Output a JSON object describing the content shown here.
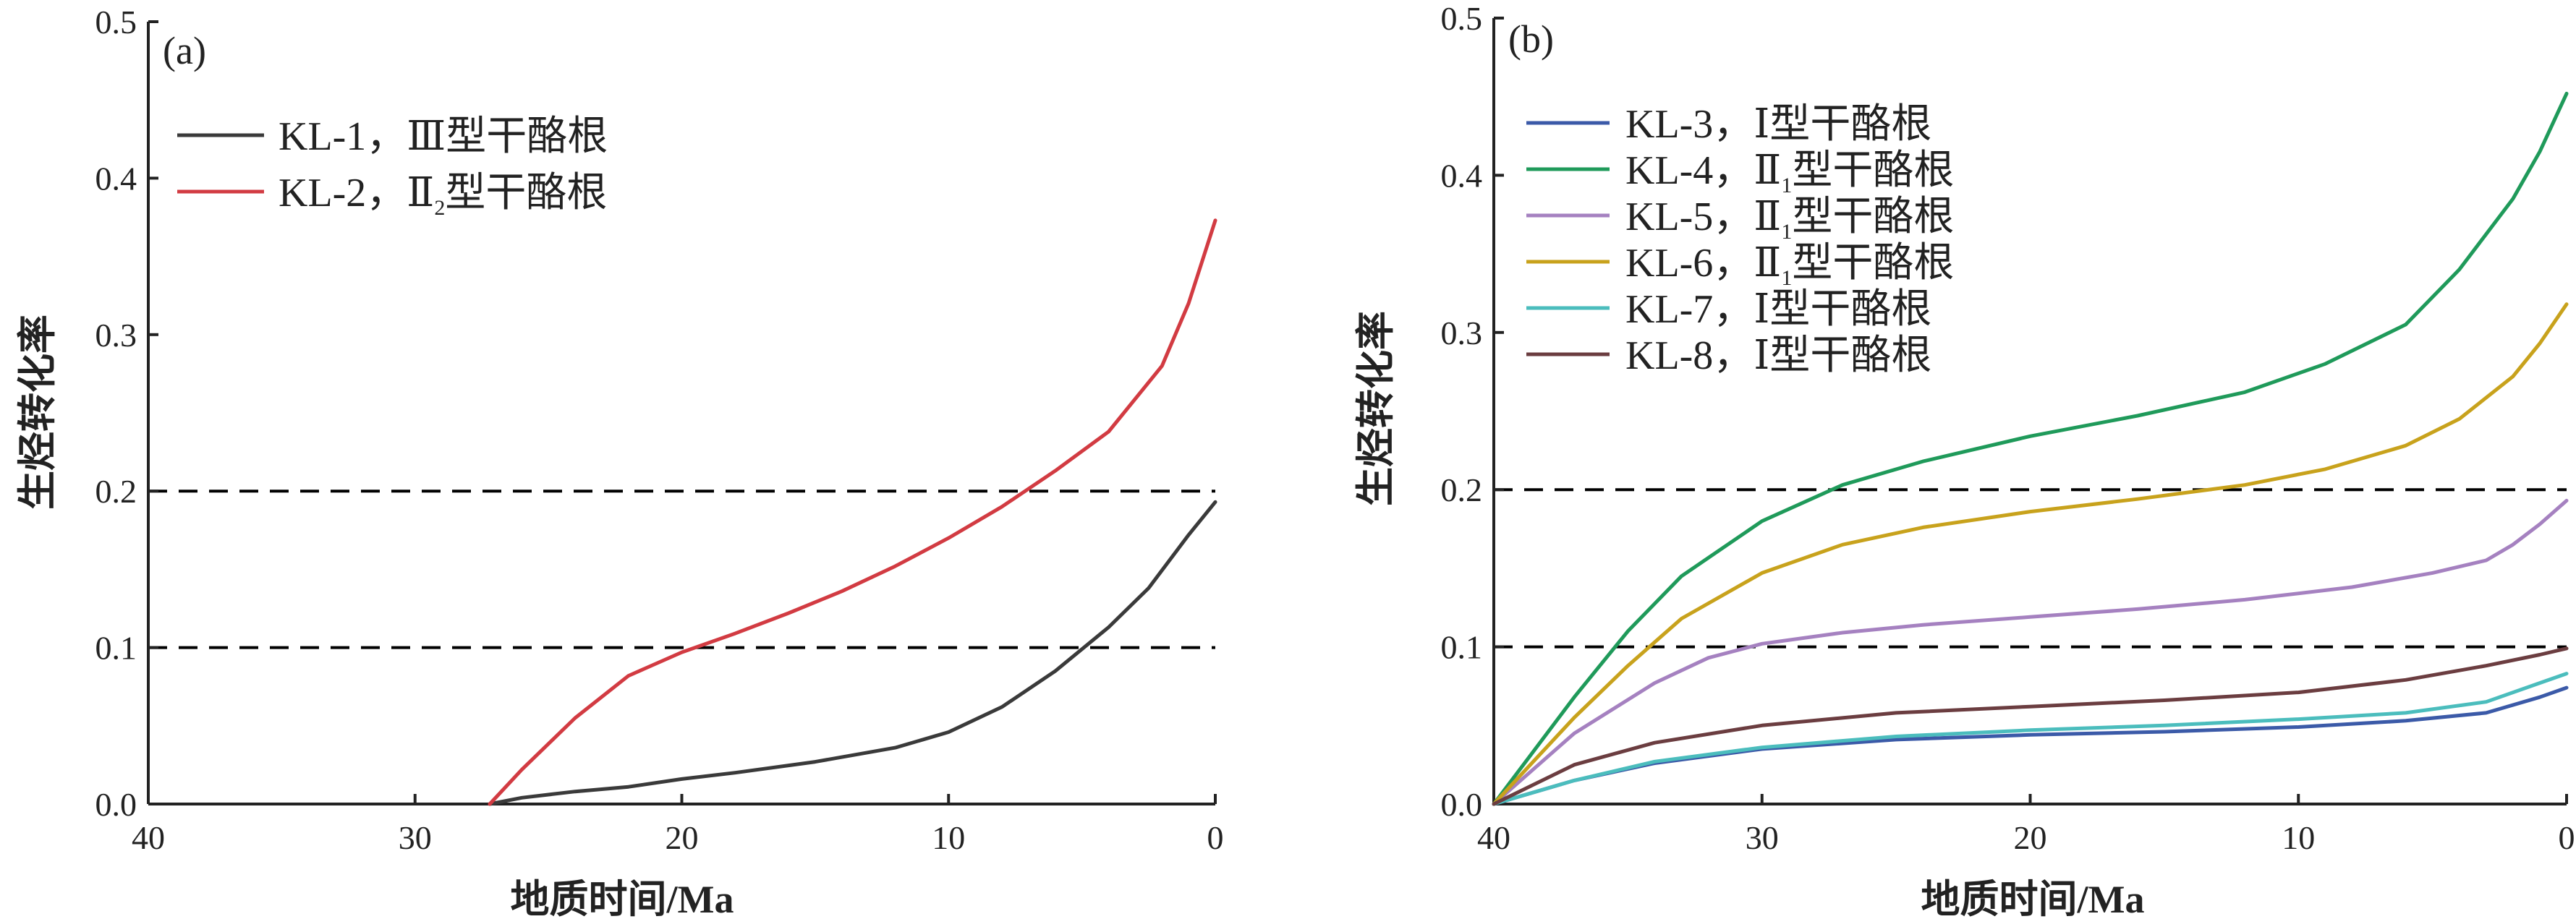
{
  "figure": {
    "panels": [
      {
        "id": "a",
        "panel_label": "(a)",
        "legend_placement": "top-left"
      },
      {
        "id": "b",
        "panel_label": "(b)",
        "legend_placement": "upper-left"
      }
    ]
  },
  "chart_data": [
    {
      "type": "line",
      "panel": "(a)",
      "xlabel": "地质时间/Ma",
      "ylabel": "生烃转化率",
      "xlim": [
        40,
        0
      ],
      "ylim": [
        0,
        0.5
      ],
      "xticks": [
        40,
        30,
        20,
        10,
        0
      ],
      "xtick_labels": [
        "40",
        "30",
        "20",
        "10",
        "0"
      ],
      "yticks": [
        0,
        0.1,
        0.2,
        0.3,
        0.4,
        0.5
      ],
      "ytick_labels": [
        "0.0",
        "0.1",
        "0.2",
        "0.3",
        "0.4",
        "0.5"
      ],
      "reference_lines": [
        {
          "axis": "y",
          "value": 0.1,
          "style": "dashed",
          "color": "#000000"
        },
        {
          "axis": "y",
          "value": 0.2,
          "style": "dashed",
          "color": "#000000"
        }
      ],
      "series": [
        {
          "name": "KL-1，Ⅲ型干酪根",
          "label_main": "KL-1，Ⅲ型干酪根",
          "color": "#3a3a3a",
          "x": [
            27.2,
            26,
            25,
            24,
            22,
            20,
            18,
            15,
            12,
            10,
            8,
            6,
            4,
            2.5,
            1,
            0
          ],
          "y": [
            0.0,
            0.004,
            0.006,
            0.008,
            0.011,
            0.016,
            0.02,
            0.027,
            0.036,
            0.046,
            0.062,
            0.085,
            0.113,
            0.138,
            0.172,
            0.193
          ]
        },
        {
          "name": "KL-2，Ⅱ2型干酪根",
          "label_main": "KL-2，Ⅱ",
          "label_sub": "2",
          "label_tail": "型干酪根",
          "color": "#d23b42",
          "x": [
            27.2,
            26,
            24,
            22,
            20,
            18,
            16,
            14,
            12,
            10,
            8,
            6,
            4,
            2,
            1,
            0
          ],
          "y": [
            0.0,
            0.022,
            0.055,
            0.082,
            0.097,
            0.109,
            0.122,
            0.136,
            0.152,
            0.17,
            0.19,
            0.213,
            0.238,
            0.28,
            0.32,
            0.373
          ]
        }
      ]
    },
    {
      "type": "line",
      "panel": "(b)",
      "xlabel": "地质时间/Ma",
      "ylabel": "生烃转化率",
      "xlim": [
        40,
        0
      ],
      "ylim": [
        0,
        0.5
      ],
      "xticks": [
        40,
        30,
        20,
        10,
        0
      ],
      "xtick_labels": [
        "40",
        "30",
        "20",
        "10",
        "0"
      ],
      "yticks": [
        0,
        0.1,
        0.2,
        0.3,
        0.4,
        0.5
      ],
      "ytick_labels": [
        "0.0",
        "0.1",
        "0.2",
        "0.3",
        "0.4",
        "0.5"
      ],
      "reference_lines": [
        {
          "axis": "y",
          "value": 0.1,
          "style": "dashed",
          "color": "#000000"
        },
        {
          "axis": "y",
          "value": 0.2,
          "style": "dashed",
          "color": "#000000"
        }
      ],
      "series": [
        {
          "name": "KL-3，Ⅰ型干酪根",
          "label_main": "KL-3，Ⅰ型干酪根",
          "color": "#3b5aa8",
          "x": [
            40,
            37,
            34,
            30,
            25,
            20,
            15,
            10,
            6,
            3,
            1,
            0
          ],
          "y": [
            0.0,
            0.015,
            0.026,
            0.035,
            0.041,
            0.044,
            0.046,
            0.049,
            0.053,
            0.058,
            0.068,
            0.074
          ]
        },
        {
          "name": "KL-4，Ⅱ1型干酪根",
          "label_main": "KL-4，Ⅱ",
          "label_sub": "1",
          "label_tail": "型干酪根",
          "color": "#1f9a5a",
          "x": [
            40,
            37,
            35,
            33,
            30,
            27,
            24,
            20,
            16,
            12,
            9,
            6,
            4,
            2,
            1,
            0
          ],
          "y": [
            0.0,
            0.068,
            0.11,
            0.145,
            0.18,
            0.203,
            0.218,
            0.234,
            0.247,
            0.262,
            0.28,
            0.305,
            0.34,
            0.385,
            0.415,
            0.452
          ]
        },
        {
          "name": "KL-5，Ⅱ1型干酪根",
          "label_main": "KL-5，Ⅱ",
          "label_sub": "1",
          "label_tail": "型干酪根",
          "color": "#a581c0",
          "x": [
            40,
            37,
            34,
            32,
            30,
            27,
            24,
            20,
            16,
            12,
            8,
            5,
            3,
            2,
            1,
            0
          ],
          "y": [
            0.0,
            0.045,
            0.077,
            0.093,
            0.102,
            0.109,
            0.114,
            0.119,
            0.124,
            0.13,
            0.138,
            0.147,
            0.155,
            0.165,
            0.178,
            0.193
          ]
        },
        {
          "name": "KL-6，Ⅱ1型干酪根",
          "label_main": "KL-6，Ⅱ",
          "label_sub": "1",
          "label_tail": "型干酪根",
          "color": "#c8a21c",
          "x": [
            40,
            37,
            35,
            33,
            30,
            27,
            24,
            20,
            16,
            12,
            9,
            6,
            4,
            2,
            1,
            0
          ],
          "y": [
            0.0,
            0.055,
            0.088,
            0.118,
            0.147,
            0.165,
            0.176,
            0.186,
            0.194,
            0.203,
            0.213,
            0.228,
            0.245,
            0.272,
            0.293,
            0.318
          ]
        },
        {
          "name": "KL-7，Ⅰ型干酪根",
          "label_main": "KL-7，Ⅰ型干酪根",
          "color": "#4bbdbd",
          "x": [
            40,
            37,
            34,
            30,
            25,
            20,
            15,
            10,
            6,
            3,
            1,
            0
          ],
          "y": [
            0.0,
            0.015,
            0.027,
            0.036,
            0.043,
            0.047,
            0.05,
            0.054,
            0.058,
            0.065,
            0.077,
            0.083
          ]
        },
        {
          "name": "KL-8，Ⅰ型干酪根",
          "label_main": "KL-8，Ⅰ型干酪根",
          "color": "#6b3d40",
          "x": [
            40,
            37,
            34,
            30,
            25,
            20,
            15,
            10,
            6,
            3,
            1,
            0
          ],
          "y": [
            0.0,
            0.025,
            0.039,
            0.05,
            0.058,
            0.062,
            0.066,
            0.071,
            0.079,
            0.088,
            0.095,
            0.099
          ]
        }
      ]
    }
  ]
}
